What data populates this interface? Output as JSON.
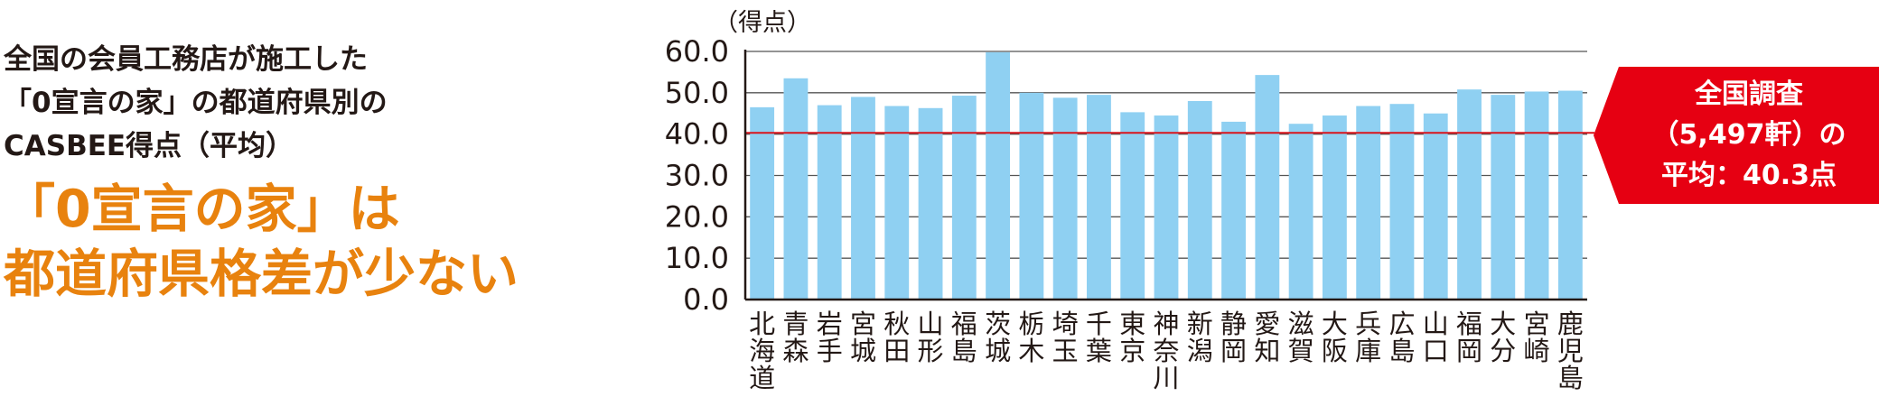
{
  "subtitle_lines": [
    "全国の会員工務店が施工した",
    "「0宣言の家」の都道府県別の",
    "CASBEE得点（平均）"
  ],
  "headline_lines": [
    "「0宣言の家」は",
    "都道府県格差が少ない"
  ],
  "callout": {
    "lines": [
      "全国調査",
      "（5,497軒）の",
      "平均：40.3点"
    ]
  },
  "colors": {
    "bar": "#8fd0f2",
    "average_line": "#d9141c",
    "callout_bg": "#e60012",
    "headline": "#e8820e",
    "grid": "#555555"
  },
  "chart_data": {
    "type": "bar",
    "ylabel": "（得点）",
    "ylim": [
      0,
      60
    ],
    "yticks": [
      "0.0",
      "10.0",
      "20.0",
      "30.0",
      "40.0",
      "50.0",
      "60.0"
    ],
    "grid": true,
    "average_line": 40.3,
    "categories": [
      "北海道",
      "青森",
      "岩手",
      "宮城",
      "秋田",
      "山形",
      "福島",
      "茨城",
      "栃木",
      "埼玉",
      "千葉",
      "東京",
      "神奈川",
      "新潟",
      "静岡",
      "愛知",
      "滋賀",
      "大阪",
      "兵庫",
      "広島",
      "山口",
      "福岡",
      "大分",
      "宮崎",
      "鹿児島"
    ],
    "values": [
      46.5,
      53.5,
      47.0,
      49.0,
      46.8,
      46.3,
      49.3,
      59.8,
      50.0,
      48.8,
      49.5,
      45.3,
      44.5,
      48.0,
      43.0,
      54.3,
      42.5,
      44.5,
      46.8,
      47.3,
      45.0,
      50.8,
      49.5,
      50.3,
      50.5
    ]
  }
}
